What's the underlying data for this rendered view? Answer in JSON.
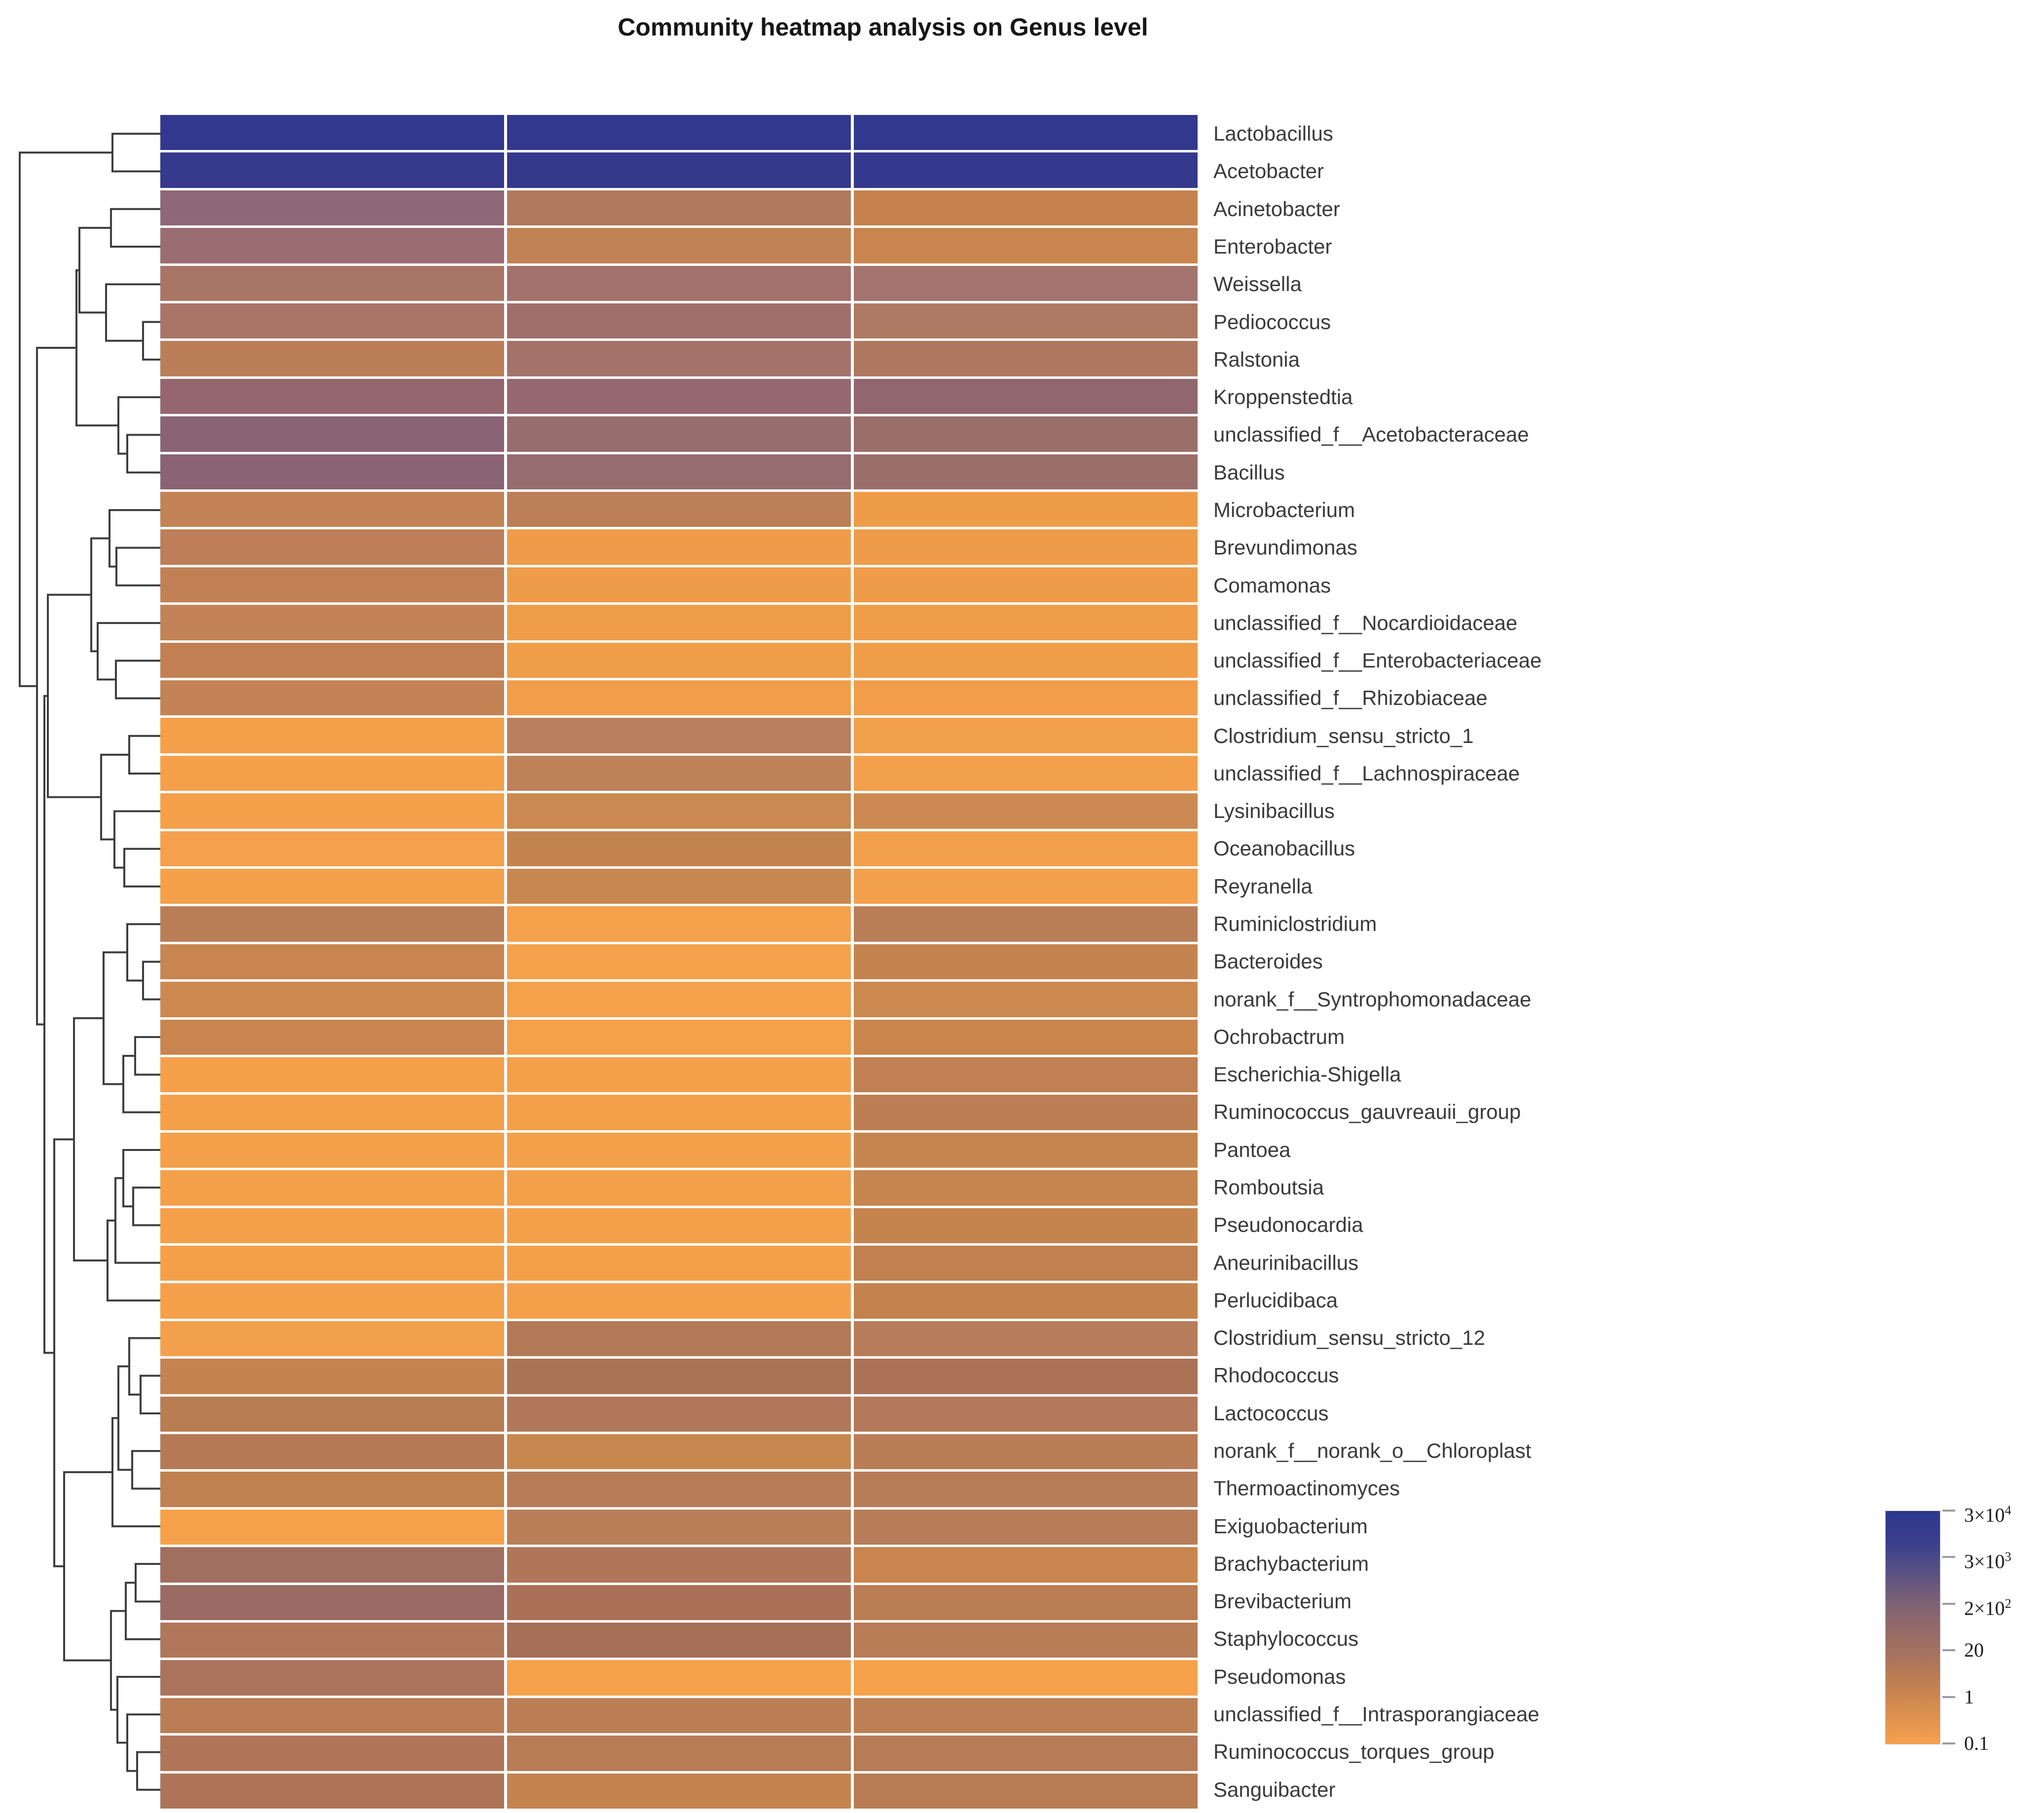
{
  "title": "Community heatmap analysis on Genus level",
  "legend": {
    "ticks": [
      {
        "base": "3×10",
        "sup": "4"
      },
      {
        "base": "3×10",
        "sup": "3"
      },
      {
        "base": "2×10",
        "sup": "2"
      },
      {
        "base": "20",
        "sup": ""
      },
      {
        "base": "1",
        "sup": ""
      },
      {
        "base": "0.1",
        "sup": ""
      }
    ],
    "gradient": [
      "#2C388D",
      "#3A3E8C",
      "#554F85",
      "#7A6077",
      "#93696A",
      "#A9745C",
      "#C28150",
      "#DD9150",
      "#F6A14B"
    ]
  },
  "chart_data": {
    "type": "heatmap",
    "title": "Community heatmap analysis on Genus level",
    "taxonomic_level": "Genus",
    "n_columns": 3,
    "column_labels": [],
    "color_scale": {
      "type": "log",
      "tick_labels": [
        "3×10^4",
        "3×10^3",
        "2×10^2",
        "20",
        "1",
        "0.1"
      ],
      "high_color": "#2C388D",
      "low_color": "#F6A14B"
    },
    "rows": [
      {
        "genus": "Lactobacillus",
        "colors": [
          "#32388E",
          "#31388D",
          "#31388D"
        ],
        "values": [
          30000,
          30000,
          30000
        ]
      },
      {
        "genus": "Acetobacter",
        "colors": [
          "#36398C",
          "#35398C",
          "#34398D"
        ],
        "values": [
          20000,
          20000,
          20000
        ]
      },
      {
        "genus": "Acinetobacter",
        "colors": [
          "#8D6877",
          "#B07A5F",
          "#C5824F"
        ],
        "values": [
          200,
          30,
          8
        ]
      },
      {
        "genus": "Enterobacter",
        "colors": [
          "#9A6D72",
          "#C18254",
          "#C8854E"
        ],
        "values": [
          120,
          10,
          8
        ]
      },
      {
        "genus": "Weissella",
        "colors": [
          "#A97566",
          "#A3726C",
          "#A3746E"
        ],
        "values": [
          50,
          60,
          60
        ]
      },
      {
        "genus": "Pediococcus",
        "colors": [
          "#AA7468",
          "#9F6F6C",
          "#AE7963"
        ],
        "values": [
          50,
          70,
          35
        ]
      },
      {
        "genus": "Ralstonia",
        "colors": [
          "#BB7E58",
          "#A5726A",
          "#AE775F"
        ],
        "values": [
          12,
          55,
          35
        ]
      },
      {
        "genus": "Kroppenstedtia",
        "colors": [
          "#95666E",
          "#966870",
          "#92666E"
        ],
        "values": [
          150,
          140,
          160
        ]
      },
      {
        "genus": "unclassified_f__Acetobacteraceae",
        "colors": [
          "#8A6473",
          "#986D6E",
          "#9A6F6A"
        ],
        "values": [
          220,
          90,
          85
        ]
      },
      {
        "genus": "Bacillus",
        "colors": [
          "#8A6472",
          "#966C6F",
          "#9A6F69"
        ],
        "values": [
          220,
          100,
          80
        ]
      },
      {
        "genus": "Microbacterium",
        "colors": [
          "#C38355",
          "#BD7F58",
          "#EF9C49"
        ],
        "values": [
          8,
          10,
          0.3
        ]
      },
      {
        "genus": "Brevundimonas",
        "colors": [
          "#BD7E59",
          "#EE9C4A",
          "#EF9C4A"
        ],
        "values": [
          10,
          0.3,
          0.3
        ]
      },
      {
        "genus": "Comamonas",
        "colors": [
          "#C28155",
          "#EF9C4A",
          "#EF9C4A"
        ],
        "values": [
          8,
          0.3,
          0.3
        ]
      },
      {
        "genus": "unclassified_f__Nocardioidaceae",
        "colors": [
          "#C48356",
          "#F09D49",
          "#F09D49"
        ],
        "values": [
          7,
          0.25,
          0.25
        ]
      },
      {
        "genus": "unclassified_f__Enterobacteriaceae",
        "colors": [
          "#C28052",
          "#F09D49",
          "#F09D49"
        ],
        "values": [
          8,
          0.25,
          0.25
        ]
      },
      {
        "genus": "unclassified_f__Rhizobiaceae",
        "colors": [
          "#C48355",
          "#F19D4A",
          "#F19D4A"
        ],
        "values": [
          7,
          0.2,
          0.2
        ]
      },
      {
        "genus": "Clostridium_sensu_stricto_1",
        "colors": [
          "#F4A04B",
          "#B97F5E",
          "#F3A04C"
        ],
        "values": [
          0.15,
          12,
          0.2
        ]
      },
      {
        "genus": "unclassified_f__Lachnospiraceae",
        "colors": [
          "#F4A04B",
          "#BE8158",
          "#F3A04C"
        ],
        "values": [
          0.15,
          9,
          0.18
        ]
      },
      {
        "genus": "Lysinibacillus",
        "colors": [
          "#F4A04A",
          "#C98951",
          "#CC8951"
        ],
        "values": [
          0.15,
          4,
          3.5
        ]
      },
      {
        "genus": "Oceanobacillus",
        "colors": [
          "#F4A04C",
          "#C4844F",
          "#F3A04C"
        ],
        "values": [
          0.15,
          6,
          0.18
        ]
      },
      {
        "genus": "Reyranella",
        "colors": [
          "#F4A04B",
          "#C8874F",
          "#F3A04C"
        ],
        "values": [
          0.15,
          4.5,
          0.18
        ]
      },
      {
        "genus": "Ruminiclostridium",
        "colors": [
          "#B97E56",
          "#F6A14B",
          "#B97E58"
        ],
        "values": [
          12,
          0.12,
          12
        ]
      },
      {
        "genus": "Bacteroides",
        "colors": [
          "#C98550",
          "#F5A14B",
          "#C5834F"
        ],
        "values": [
          4,
          0.13,
          6
        ]
      },
      {
        "genus": "norank_f__Syntrophomonadaceae",
        "colors": [
          "#CB8950",
          "#F5A04B",
          "#CB8950"
        ],
        "values": [
          3.5,
          0.14,
          3.5
        ]
      },
      {
        "genus": "Ochrobactrum",
        "colors": [
          "#C8854F",
          "#F5A04A",
          "#C9854C"
        ],
        "values": [
          4.5,
          0.15,
          4.5
        ]
      },
      {
        "genus": "Escherichia-Shigella",
        "colors": [
          "#F4A04B",
          "#F4A04B",
          "#C08053"
        ],
        "values": [
          0.15,
          0.15,
          9
        ]
      },
      {
        "genus": "Ruminococcus_gauvreauii_group",
        "colors": [
          "#F4A04B",
          "#F4A04B",
          "#BD7E53"
        ],
        "values": [
          0.15,
          0.15,
          10
        ]
      },
      {
        "genus": "Pantoea",
        "colors": [
          "#F4A04B",
          "#F4A04B",
          "#C6854F"
        ],
        "values": [
          0.15,
          0.15,
          5
        ]
      },
      {
        "genus": "Romboutsia",
        "colors": [
          "#F4A04B",
          "#F4A04B",
          "#C6854E"
        ],
        "values": [
          0.15,
          0.15,
          5
        ]
      },
      {
        "genus": "Pseudonocardia",
        "colors": [
          "#F4A04B",
          "#F4A04B",
          "#C5844E"
        ],
        "values": [
          0.15,
          0.15,
          5.5
        ]
      },
      {
        "genus": "Aneurinibacillus",
        "colors": [
          "#F4A04B",
          "#F4A04B",
          "#C0804F"
        ],
        "values": [
          0.15,
          0.15,
          8
        ]
      },
      {
        "genus": "Perlucidibaca",
        "colors": [
          "#F4A04B",
          "#F4A04B",
          "#C4834E"
        ],
        "values": [
          0.15,
          0.15,
          6
        ]
      },
      {
        "genus": "Clostridium_sensu_stricto_12",
        "colors": [
          "#F3A04C",
          "#B27957",
          "#B77C59"
        ],
        "values": [
          0.2,
          16,
          13
        ]
      },
      {
        "genus": "Rhodococcus",
        "colors": [
          "#C58350",
          "#AB7355",
          "#AB7257"
        ],
        "values": [
          5,
          25,
          25
        ]
      },
      {
        "genus": "Lactococcus",
        "colors": [
          "#B97D52",
          "#B0775A",
          "#B3795A"
        ],
        "values": [
          11,
          18,
          16
        ]
      },
      {
        "genus": "norank_f__norank_o__Chloroplast",
        "colors": [
          "#B57A55",
          "#C98750",
          "#B87C56"
        ],
        "values": [
          14,
          4.5,
          12
        ]
      },
      {
        "genus": "Thermoactinomyces",
        "colors": [
          "#C08150",
          "#B77C57",
          "#B77C58"
        ],
        "values": [
          9,
          13,
          13
        ]
      },
      {
        "genus": "Exiguobacterium",
        "colors": [
          "#F5A04A",
          "#B97E58",
          "#B87D58"
        ],
        "values": [
          0.12,
          12,
          12
        ]
      },
      {
        "genus": "Brachybacterium",
        "colors": [
          "#A16F60",
          "#B0765A",
          "#C8854E"
        ],
        "values": [
          45,
          20,
          4.5
        ]
      },
      {
        "genus": "Brevibacterium",
        "colors": [
          "#9A6B64",
          "#AA7158",
          "#BB7D54"
        ],
        "values": [
          70,
          30,
          10
        ]
      },
      {
        "genus": "Staphylococcus",
        "colors": [
          "#B0775B",
          "#A56F58",
          "#B87C56"
        ],
        "values": [
          16,
          30,
          12
        ]
      },
      {
        "genus": "Pseudomonas",
        "colors": [
          "#AB735C",
          "#F6A14B",
          "#F6A14B"
        ],
        "values": [
          30,
          0.13,
          0.13
        ]
      },
      {
        "genus": "unclassified_f__Intrasporangiaceae",
        "colors": [
          "#BA7D55",
          "#BB7E55",
          "#BD8054"
        ],
        "values": [
          9,
          9,
          8
        ]
      },
      {
        "genus": "Ruminococcus_torques_group",
        "colors": [
          "#B1765A",
          "#B87C57",
          "#B77B58"
        ],
        "values": [
          15,
          12,
          13
        ]
      },
      {
        "genus": "Sanguibacter",
        "colors": [
          "#AD7458",
          "#C5834F",
          "#B97C54"
        ],
        "values": [
          18,
          5,
          10
        ]
      }
    ],
    "dendrogram": {
      "axis": "rows",
      "leaf_count": 45,
      "merges": [
        [
          "L1",
          "L2",
          228
        ],
        [
          "L3",
          "L4",
          225
        ],
        [
          "L6",
          "L7",
          290
        ],
        [
          "L5",
          "M2",
          215
        ],
        [
          "M1",
          "M3",
          161
        ],
        [
          "L9",
          "L10",
          258
        ],
        [
          "L8",
          "M5",
          240
        ],
        [
          "M4",
          "M6",
          155
        ],
        [
          "L12",
          "L13",
          236
        ],
        [
          "L11",
          "M8",
          222
        ],
        [
          "L15",
          "L16",
          235
        ],
        [
          "L14",
          "M10",
          198
        ],
        [
          "M9",
          "M11",
          185
        ],
        [
          "L17",
          "L18",
          262
        ],
        [
          "L20",
          "L21",
          252
        ],
        [
          "L19",
          "M14",
          232
        ],
        [
          "M13",
          "M15",
          205
        ],
        [
          "M12",
          "M16",
          97
        ],
        [
          "L23",
          "L24",
          290
        ],
        [
          "L22",
          "M18",
          258
        ],
        [
          "L25",
          "L26",
          274
        ],
        [
          "M20",
          "L27",
          250
        ],
        [
          "M19",
          "M21",
          210
        ],
        [
          "L29",
          "L30",
          270
        ],
        [
          "L28",
          "M23",
          250
        ],
        [
          "M24",
          "L31",
          234
        ],
        [
          "M25",
          "L32",
          218
        ],
        [
          "M22",
          "M26",
          150
        ],
        [
          "L34",
          "L35",
          285
        ],
        [
          "L33",
          "M28",
          262
        ],
        [
          "L36",
          "L37",
          268
        ],
        [
          "M29",
          "M30",
          240
        ],
        [
          "M31",
          "L38",
          228
        ],
        [
          "L39",
          "L40",
          275
        ],
        [
          "M33",
          "L41",
          255
        ],
        [
          "L44",
          "L45",
          278
        ],
        [
          "L43",
          "M35",
          258
        ],
        [
          "L42",
          "M36",
          238
        ],
        [
          "M34",
          "M37",
          225
        ],
        [
          "M32",
          "M38",
          130
        ],
        [
          "M27",
          "M39",
          110
        ],
        [
          "M17",
          "M40",
          90
        ],
        [
          "M7",
          "M41",
          75
        ],
        [
          "M0",
          "M42",
          40
        ]
      ]
    }
  }
}
